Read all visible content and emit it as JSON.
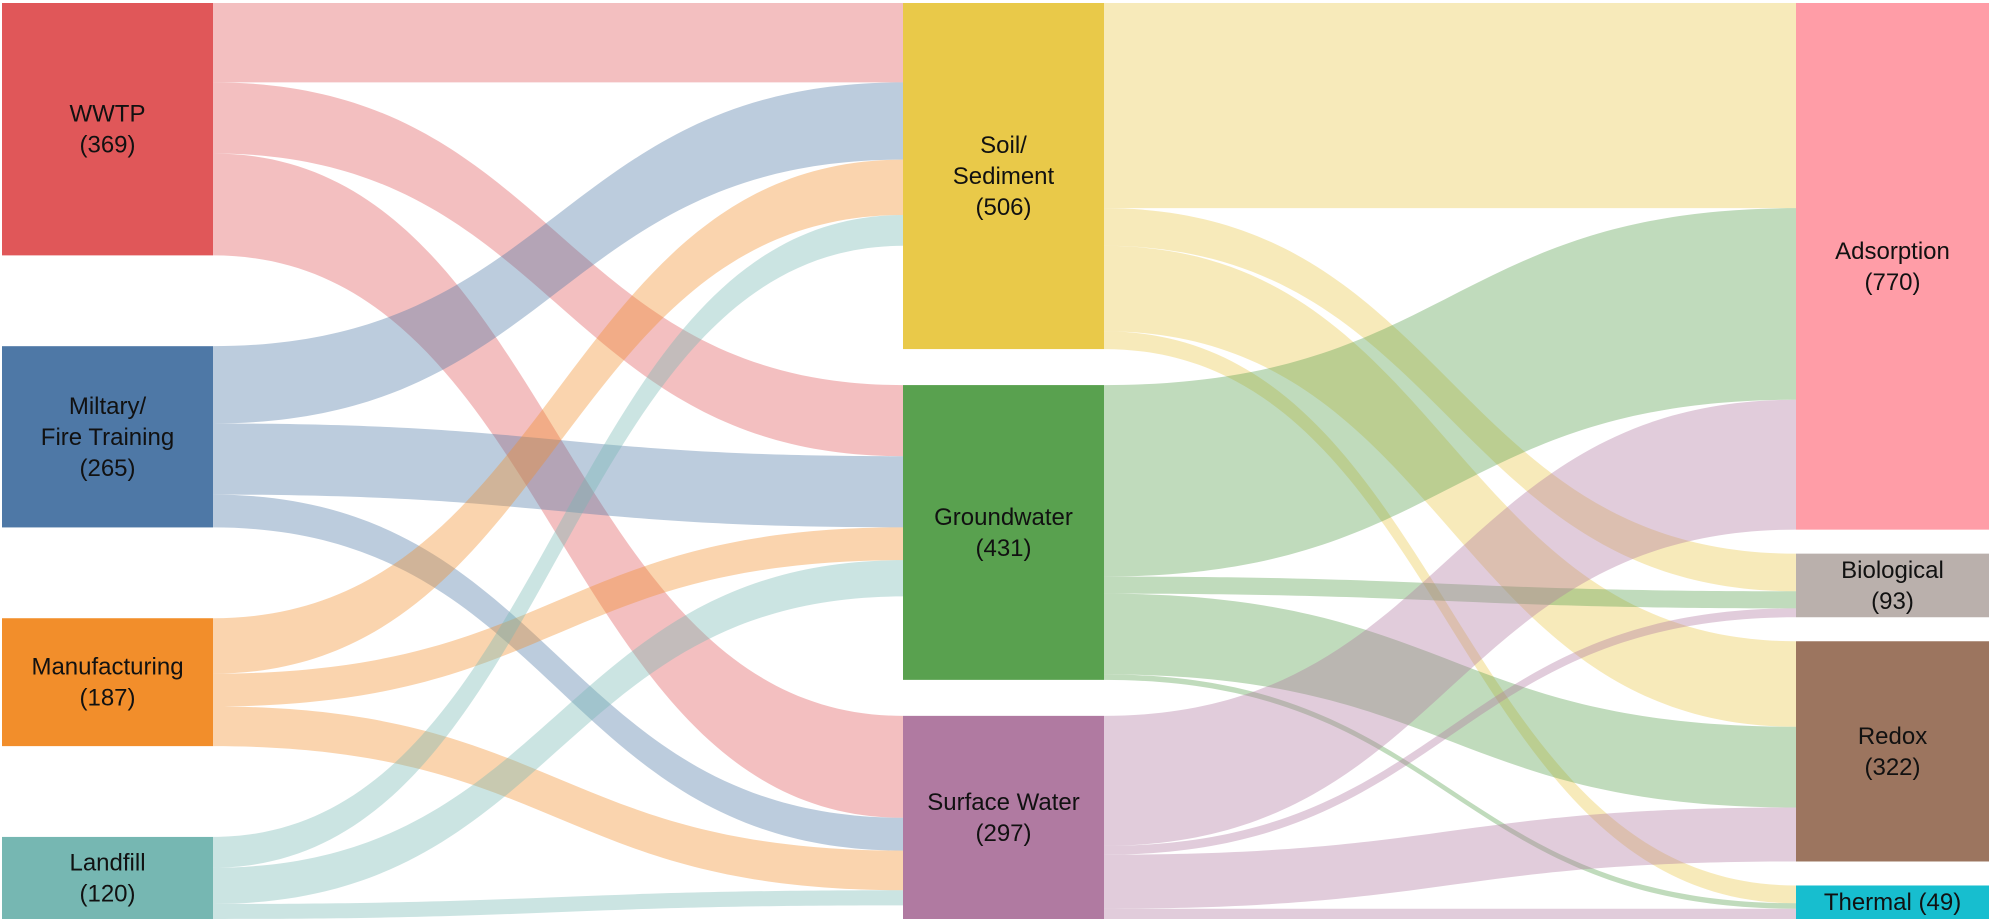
{
  "chart_data": {
    "type": "sankey",
    "title": "",
    "columns": [
      [
        "WWTP",
        "Miltary/ Fire Training",
        "Manufacturing",
        "Landfill"
      ],
      [
        "Soil/ Sediment",
        "Groundwater",
        "Surface Water"
      ],
      [
        "Adsorption",
        "Biological",
        "Redox",
        "Thermal"
      ]
    ],
    "nodes": [
      {
        "id": "WWTP",
        "label_lines": [
          "WWTP",
          "(369)"
        ],
        "value": 369,
        "color": "#e05759"
      },
      {
        "id": "Miltary/ Fire Training",
        "label_lines": [
          "Miltary/",
          "Fire Training",
          "(265)"
        ],
        "value": 265,
        "color": "#4e78a6"
      },
      {
        "id": "Manufacturing",
        "label_lines": [
          "Manufacturing",
          "(187)"
        ],
        "value": 187,
        "color": "#f28e2b"
      },
      {
        "id": "Landfill",
        "label_lines": [
          "Landfill",
          "(120)"
        ],
        "value": 120,
        "color": "#76b7b2"
      },
      {
        "id": "Soil/ Sediment",
        "label_lines": [
          "Soil/",
          "Sediment",
          "(506)"
        ],
        "value": 506,
        "color": "#e9c949"
      },
      {
        "id": "Groundwater",
        "label_lines": [
          "Groundwater",
          "(431)"
        ],
        "value": 431,
        "color": "#59a14f"
      },
      {
        "id": "Surface Water",
        "label_lines": [
          "Surface Water",
          "(297)"
        ],
        "value": 297,
        "color": "#b07aa1"
      },
      {
        "id": "Adsorption",
        "label_lines": [
          "Adsorption",
          "(770)"
        ],
        "value": 770,
        "color": "#ff9da7"
      },
      {
        "id": "Biological",
        "label_lines": [
          "Biological",
          "(93)"
        ],
        "value": 93,
        "color": "#bab0ac"
      },
      {
        "id": "Redox",
        "label_lines": [
          "Redox",
          "(322)"
        ],
        "value": 322,
        "color": "#9c755f"
      },
      {
        "id": "Thermal",
        "label_lines": [
          "Thermal (49)"
        ],
        "value": 49,
        "color": "#17becf"
      }
    ],
    "links": [
      {
        "source": "WWTP",
        "target": "Soil/ Sediment",
        "value": 116
      },
      {
        "source": "WWTP",
        "target": "Groundwater",
        "value": 104
      },
      {
        "source": "WWTP",
        "target": "Surface Water",
        "value": 149
      },
      {
        "source": "Miltary/ Fire Training",
        "target": "Soil/ Sediment",
        "value": 113
      },
      {
        "source": "Miltary/ Fire Training",
        "target": "Groundwater",
        "value": 104
      },
      {
        "source": "Miltary/ Fire Training",
        "target": "Surface Water",
        "value": 48
      },
      {
        "source": "Manufacturing",
        "target": "Soil/ Sediment",
        "value": 81
      },
      {
        "source": "Manufacturing",
        "target": "Groundwater",
        "value": 48
      },
      {
        "source": "Manufacturing",
        "target": "Surface Water",
        "value": 58
      },
      {
        "source": "Landfill",
        "target": "Soil/ Sediment",
        "value": 45
      },
      {
        "source": "Landfill",
        "target": "Groundwater",
        "value": 53
      },
      {
        "source": "Landfill",
        "target": "Surface Water",
        "value": 22
      },
      {
        "source": "Soil/ Sediment",
        "target": "Adsorption",
        "value": 300
      },
      {
        "source": "Soil/ Sediment",
        "target": "Biological",
        "value": 55
      },
      {
        "source": "Soil/ Sediment",
        "target": "Redox",
        "value": 125
      },
      {
        "source": "Soil/ Sediment",
        "target": "Thermal",
        "value": 26
      },
      {
        "source": "Groundwater",
        "target": "Adsorption",
        "value": 280
      },
      {
        "source": "Groundwater",
        "target": "Biological",
        "value": 25
      },
      {
        "source": "Groundwater",
        "target": "Redox",
        "value": 118
      },
      {
        "source": "Groundwater",
        "target": "Thermal",
        "value": 8
      },
      {
        "source": "Surface Water",
        "target": "Adsorption",
        "value": 190
      },
      {
        "source": "Surface Water",
        "target": "Biological",
        "value": 13
      },
      {
        "source": "Surface Water",
        "target": "Redox",
        "value": 79
      },
      {
        "source": "Surface Water",
        "target": "Thermal",
        "value": 15
      }
    ]
  }
}
